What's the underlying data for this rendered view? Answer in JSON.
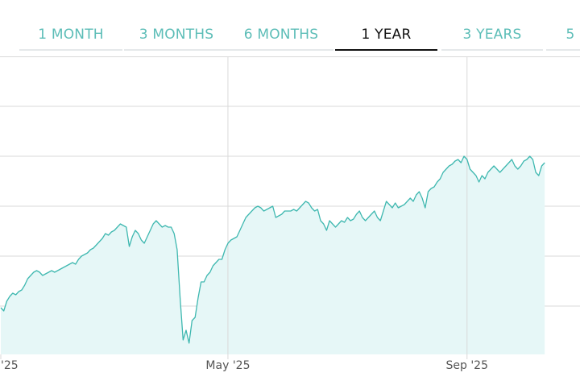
{
  "colors": {
    "accent": "#3fb8b0",
    "tab_inactive": "#5cbdb7",
    "tab_active": "#111111",
    "fill": "#e6f7f7",
    "grid": "#d9d9d9",
    "axis_text": "#555555"
  },
  "tabs": [
    {
      "label": "1 MONTH",
      "active": false
    },
    {
      "label": "3 MONTHS",
      "active": false
    },
    {
      "label": "6 MONTHS",
      "active": false
    },
    {
      "label": "1 YEAR",
      "active": true
    },
    {
      "label": "3 YEARS",
      "active": false
    },
    {
      "label": "5",
      "active": false
    }
  ],
  "chart_data": {
    "type": "area",
    "title": "",
    "xlabel": "",
    "ylabel": "",
    "grid": true,
    "x_ticks": [
      {
        "label": "'25",
        "index": 0
      },
      {
        "label": "May '25",
        "index": 76
      },
      {
        "label": "Sep '25",
        "index": 156
      }
    ],
    "ylim": [
      0,
      100
    ],
    "values": [
      22,
      21,
      24,
      25.5,
      26.5,
      26,
      27,
      27.5,
      29,
      31,
      32,
      33,
      33.5,
      33,
      32,
      32.5,
      33,
      33.5,
      33,
      33.5,
      34,
      34.5,
      35,
      35.5,
      36,
      35.5,
      37,
      38,
      38.5,
      39,
      40,
      40.5,
      41.5,
      42.5,
      43.5,
      45,
      44.5,
      45.5,
      46,
      47,
      48,
      47.5,
      47,
      41,
      44,
      46,
      45,
      43,
      42,
      44,
      46,
      48,
      49,
      48,
      47,
      47.5,
      47,
      47,
      45,
      40,
      25,
      12,
      15,
      11,
      18,
      19,
      25,
      30,
      30,
      32,
      33,
      35,
      36,
      37,
      37,
      40,
      42,
      43,
      43.5,
      44,
      46,
      48,
      50,
      51,
      52,
      53,
      53.5,
      53,
      52,
      52.5,
      53,
      53.5,
      50,
      50.5,
      51,
      52,
      52,
      52,
      52.5,
      52,
      53,
      54,
      55,
      54.5,
      53,
      52,
      52.5,
      49,
      48,
      46,
      49,
      48,
      47,
      48,
      49,
      48.5,
      50,
      49,
      49.5,
      51,
      52,
      50,
      49,
      50,
      51,
      52,
      50,
      49,
      52,
      55,
      54,
      53,
      54.5,
      53,
      53.5,
      54,
      55,
      56,
      55,
      57,
      58,
      56,
      53,
      58,
      59,
      59.5,
      61,
      62,
      64,
      65,
      66,
      66.5,
      67.5,
      68,
      67,
      69,
      68,
      65,
      64,
      63,
      61,
      63,
      62,
      64,
      65,
      66,
      65,
      64,
      65,
      66,
      67,
      68,
      66,
      65,
      66,
      67.5,
      68,
      69,
      68,
      64,
      63,
      66,
      67
    ]
  }
}
